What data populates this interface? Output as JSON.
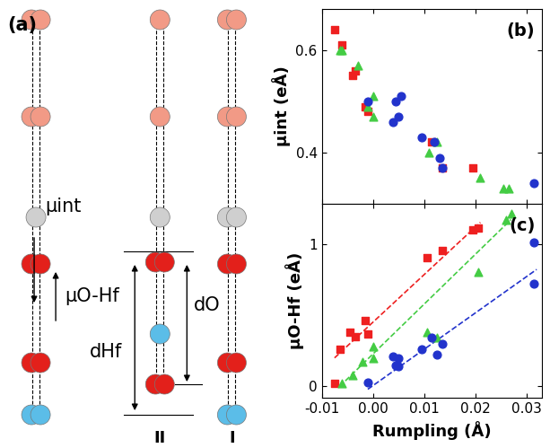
{
  "chart_data": [
    {
      "type": "scatter",
      "annotation": "(b)",
      "ylabel": "μint (eÅ)",
      "xlim": [
        -0.01,
        0.033
      ],
      "xticks": [
        -0.01,
        {
          "value": 0.0,
          "label": "0.00"
        },
        0.01,
        0.02,
        0.03
      ],
      "ylim": [
        0.3,
        0.68
      ],
      "yticks": [
        0.4,
        0.6
      ],
      "tick_labels": "y",
      "series": [
        {
          "type": "scatter",
          "color": "#ee2020",
          "marker": "square",
          "x": [
            -0.0075,
            -0.006,
            -0.004,
            -0.0035,
            -0.0015,
            -0.001,
            0.0115,
            0.0135,
            0.0195
          ],
          "values": [
            0.64,
            0.61,
            0.55,
            0.56,
            0.49,
            0.48,
            0.42,
            0.37,
            0.37
          ]
        },
        {
          "type": "scatter",
          "color": "#44cc44",
          "marker": "triangle",
          "x": [
            -0.0065,
            -0.006,
            -0.003,
            0.0,
            0.0,
            -0.001,
            0.011,
            0.0125,
            0.021,
            0.0255,
            0.0265
          ],
          "values": [
            0.6,
            0.6,
            0.57,
            0.51,
            0.47,
            0.49,
            0.4,
            0.42,
            0.35,
            0.33,
            0.33
          ]
        },
        {
          "type": "scatter",
          "color": "#2233cc",
          "marker": "circle",
          "x": [
            -0.001,
            0.004,
            0.005,
            0.0045,
            0.0055,
            0.0095,
            0.012,
            0.013,
            0.0135,
            0.0315
          ],
          "values": [
            0.5,
            0.46,
            0.47,
            0.5,
            0.51,
            0.43,
            0.42,
            0.39,
            0.37,
            0.34
          ]
        }
      ]
    },
    {
      "type": "scatter",
      "annotation": "(c)",
      "ylabel": "μO-Hf (eÅ)",
      "xlabel": "Rumpling (Å)",
      "xlim": [
        -0.01,
        0.033
      ],
      "xticks": [
        -0.01,
        {
          "value": 0.0,
          "label": "0.00"
        },
        0.01,
        0.02,
        0.03
      ],
      "ylim": [
        -0.08,
        1.28
      ],
      "yticks": [
        0,
        1
      ],
      "series": [
        {
          "type": "scatter",
          "color": "#ee2020",
          "marker": "square",
          "x": [
            -0.0075,
            -0.0065,
            -0.0045,
            -0.0035,
            -0.0015,
            -0.001,
            0.0105,
            0.0135,
            0.0195,
            0.0205
          ],
          "values": [
            0.02,
            0.26,
            0.38,
            0.35,
            0.46,
            0.37,
            0.9,
            0.95,
            1.1,
            1.11
          ]
        },
        {
          "type": "scatter",
          "color": "#44cc44",
          "marker": "triangle",
          "x": [
            -0.006,
            -0.004,
            -0.002,
            0.0,
            0.0,
            0.0105,
            0.0125,
            0.0205,
            0.026,
            0.027
          ],
          "values": [
            0.02,
            0.08,
            0.17,
            0.28,
            0.2,
            0.38,
            0.34,
            0.8,
            1.17,
            1.21
          ]
        },
        {
          "type": "scatter",
          "color": "#2233cc",
          "marker": "circle",
          "x": [
            -0.001,
            0.004,
            0.005,
            0.0045,
            0.005,
            0.0095,
            0.0115,
            0.0125,
            0.0135,
            0.0315,
            0.0315
          ],
          "values": [
            0.03,
            0.21,
            0.2,
            0.15,
            0.14,
            0.26,
            0.34,
            0.22,
            0.3,
            1.01,
            0.72
          ]
        },
        {
          "type": "line",
          "color": "#ee2020",
          "line_style": "dashed",
          "x": [
            -0.0075,
            0.021
          ],
          "values": [
            0.2,
            1.15
          ]
        },
        {
          "type": "line",
          "color": "#44cc44",
          "line_style": "dashed",
          "x": [
            -0.0065,
            0.027
          ],
          "values": [
            0.0,
            1.17
          ]
        },
        {
          "type": "line",
          "color": "#2233cc",
          "line_style": "dashed",
          "x": [
            -0.001,
            0.032
          ],
          "values": [
            -0.02,
            0.82
          ]
        }
      ]
    }
  ],
  "diagram": {
    "panel_label": "(a)",
    "labels": {
      "mu_int": "μint",
      "mu_ohf": "μO-Hf",
      "d_hf": "dHf",
      "d_o": "dO",
      "column_II": "II",
      "column_I": "I"
    }
  }
}
